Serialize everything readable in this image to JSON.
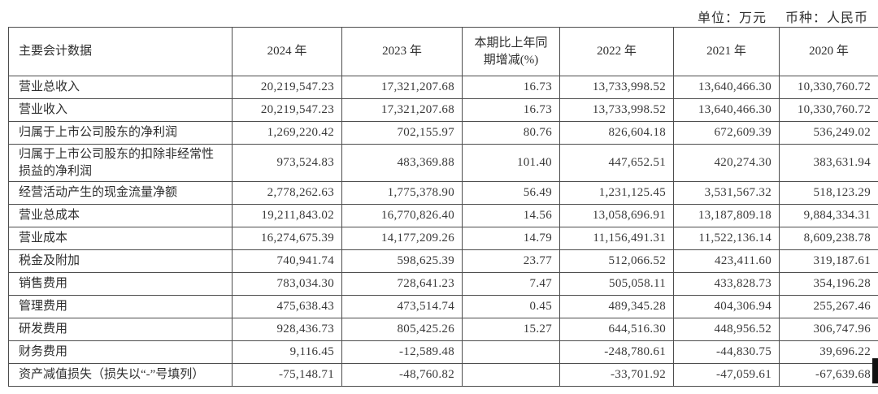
{
  "meta": {
    "unit_label": "单位：万元",
    "currency_label": "币种：人民币"
  },
  "table": {
    "header": {
      "label_col": "主要会计数据",
      "cols": [
        "2024 年",
        "2023 年",
        "本期比上年同期增减(%)",
        "2022 年",
        "2021 年",
        "2020 年"
      ]
    },
    "rows": [
      {
        "label": "营业总收入",
        "tall": false,
        "values": [
          "20,219,547.23",
          "17,321,207.68",
          "16.73",
          "13,733,998.52",
          "13,640,466.30",
          "10,330,760.72"
        ]
      },
      {
        "label": "营业收入",
        "tall": false,
        "values": [
          "20,219,547.23",
          "17,321,207.68",
          "16.73",
          "13,733,998.52",
          "13,640,466.30",
          "10,330,760.72"
        ]
      },
      {
        "label": "归属于上市公司股东的净利润",
        "tall": false,
        "values": [
          "1,269,220.42",
          "702,155.97",
          "80.76",
          "826,604.18",
          "672,609.39",
          "536,249.02"
        ]
      },
      {
        "label": "归属于上市公司股东的扣除非经常性损益的净利润",
        "tall": true,
        "values": [
          "973,524.83",
          "483,369.88",
          "101.40",
          "447,652.51",
          "420,274.30",
          "383,631.94"
        ]
      },
      {
        "label": "经营活动产生的现金流量净额",
        "tall": false,
        "values": [
          "2,778,262.63",
          "1,775,378.90",
          "56.49",
          "1,231,125.45",
          "3,531,567.32",
          "518,123.29"
        ]
      },
      {
        "label": "营业总成本",
        "tall": false,
        "values": [
          "19,211,843.02",
          "16,770,826.40",
          "14.56",
          "13,058,696.91",
          "13,187,809.18",
          "9,884,334.31"
        ]
      },
      {
        "label": "营业成本",
        "tall": false,
        "values": [
          "16,274,675.39",
          "14,177,209.26",
          "14.79",
          "11,156,491.31",
          "11,522,136.14",
          "8,609,238.78"
        ]
      },
      {
        "label": "税金及附加",
        "tall": false,
        "values": [
          "740,941.74",
          "598,625.39",
          "23.77",
          "512,066.52",
          "423,411.60",
          "319,187.61"
        ]
      },
      {
        "label": "销售费用",
        "tall": false,
        "values": [
          "783,034.30",
          "728,641.23",
          "7.47",
          "505,058.11",
          "433,828.73",
          "354,196.28"
        ]
      },
      {
        "label": "管理费用",
        "tall": false,
        "values": [
          "475,638.43",
          "473,514.74",
          "0.45",
          "489,345.28",
          "404,306.94",
          "255,267.46"
        ]
      },
      {
        "label": "研发费用",
        "tall": false,
        "values": [
          "928,436.73",
          "805,425.26",
          "15.27",
          "644,516.30",
          "448,956.52",
          "306,747.96"
        ]
      },
      {
        "label": "财务费用",
        "tall": false,
        "values": [
          "9,116.45",
          "-12,589.48",
          "",
          "-248,780.61",
          "-44,830.75",
          "39,696.22"
        ]
      },
      {
        "label": "资产减值损失（损失以“-”号填列）",
        "tall": false,
        "values": [
          "-75,148.71",
          "-48,760.82",
          "",
          "-33,701.92",
          "-47,059.61",
          "-67,639.68"
        ]
      }
    ]
  },
  "colors": {
    "text": "#333333",
    "border": "#4d4d4d",
    "background": "#ffffff"
  }
}
